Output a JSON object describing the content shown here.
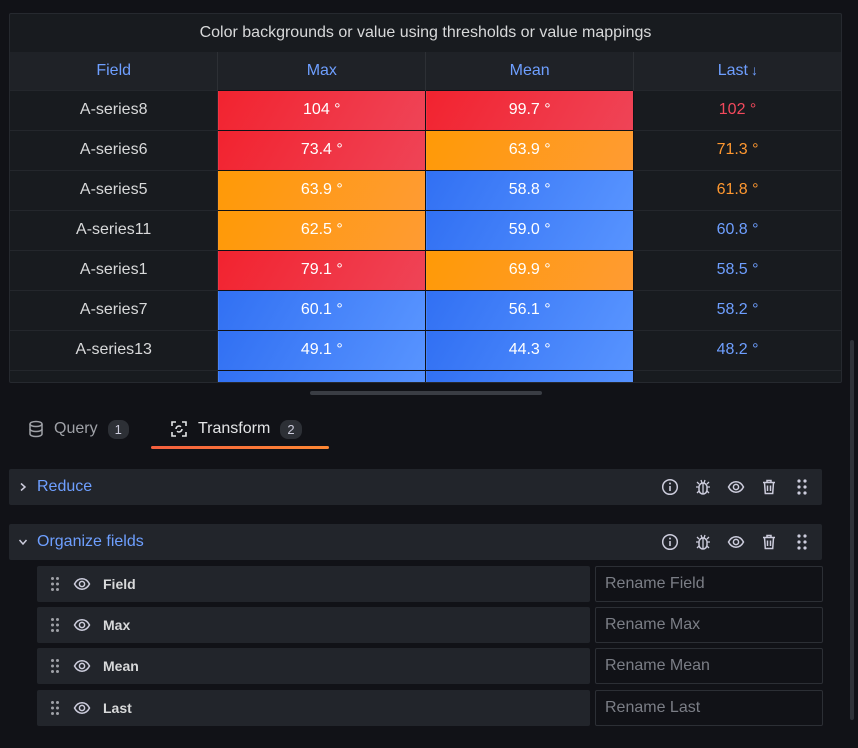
{
  "panel": {
    "title": "Color backgrounds or value using thresholds or value mappings",
    "columns": [
      "Field",
      "Max",
      "Mean",
      "Last"
    ],
    "sort_arrow": "↓",
    "rows": [
      {
        "field": "A-series8",
        "max": "104 °",
        "mean": "99.7 °",
        "last": "102 °"
      },
      {
        "field": "A-series6",
        "max": "73.4 °",
        "mean": "63.9 °",
        "last": "71.3 °"
      },
      {
        "field": "A-series5",
        "max": "63.9 °",
        "mean": "58.8 °",
        "last": "61.8 °"
      },
      {
        "field": "A-series11",
        "max": "62.5 °",
        "mean": "59.0 °",
        "last": "60.8 °"
      },
      {
        "field": "A-series1",
        "max": "79.1 °",
        "mean": "69.9 °",
        "last": "58.5 °"
      },
      {
        "field": "A-series7",
        "max": "60.1 °",
        "mean": "56.1 °",
        "last": "58.2 °"
      },
      {
        "field": "A-series13",
        "max": "49.1 °",
        "mean": "44.3 °",
        "last": "48.2 °"
      }
    ],
    "threshold_colors": {
      "red": "#f2495c",
      "orange": "#ff9830",
      "blue": "#6e9fff"
    }
  },
  "tabs": {
    "query": {
      "label": "Query",
      "count": "1"
    },
    "transform": {
      "label": "Transform",
      "count": "2"
    }
  },
  "transformations": {
    "reduce": {
      "label": "Reduce"
    },
    "organize": {
      "label": "Organize fields"
    }
  },
  "fields": [
    {
      "name": "Field",
      "placeholder": "Rename Field"
    },
    {
      "name": "Max",
      "placeholder": "Rename Max"
    },
    {
      "name": "Mean",
      "placeholder": "Rename Mean"
    },
    {
      "name": "Last",
      "placeholder": "Rename Last"
    }
  ]
}
